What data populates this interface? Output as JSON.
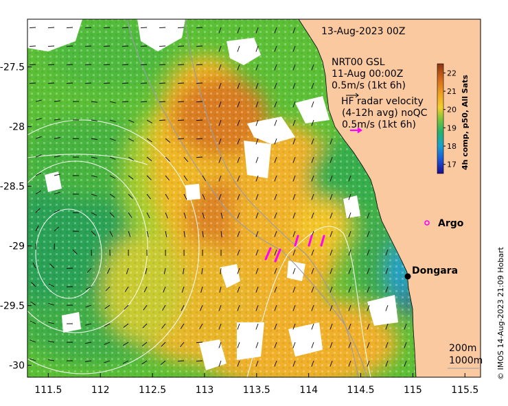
{
  "map": {
    "date_label": "13-Aug-2023 00Z",
    "gsl": {
      "line1": "NRT00 GSL",
      "line2": "11-Aug 00:00Z",
      "line3": "0.5m/s (1kt 6h)"
    },
    "radar": {
      "line1": "HF radar velocity",
      "line2": "(4-12h avg) noQC",
      "line3": "0.5m/s (1kt 6h)"
    },
    "places": {
      "argo": "Argo",
      "dongara": "Dongara"
    },
    "isobaths": {
      "shallow": "200m",
      "deep": "1000m"
    },
    "credit": "© IMOS 14-Aug-2023 21:09 Hobart",
    "colorbar": {
      "title": "4h comp, p50, All Sats",
      "ticks": [
        "17",
        "18",
        "19",
        "20",
        "21",
        "22"
      ],
      "range": [
        16.5,
        22.5
      ]
    },
    "axes": {
      "lon_ticks": [
        "111.5",
        "112",
        "112.5",
        "113",
        "113.5",
        "114",
        "114.5",
        "115",
        "115.5"
      ],
      "lat_ticks": [
        "-27.5",
        "-28",
        "-28.5",
        "-29",
        "-29.5",
        "-30"
      ],
      "lon_range": [
        111.3,
        115.65
      ],
      "lat_range": [
        -30.1,
        -27.1
      ]
    },
    "colors": {
      "land": "#fbc9a0",
      "radar_arrow": "#ff00ff",
      "argo": "#ff00ff",
      "dongara": "#000000"
    }
  }
}
